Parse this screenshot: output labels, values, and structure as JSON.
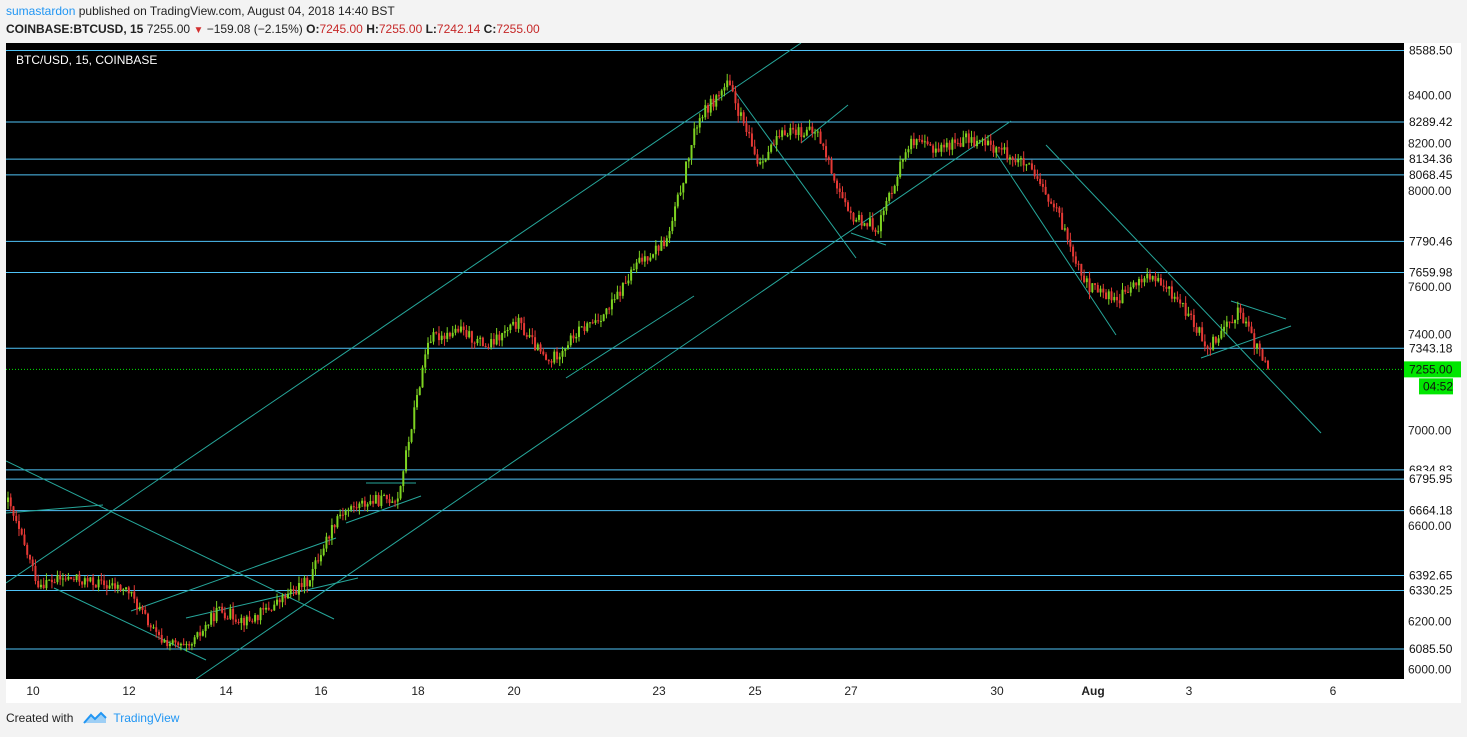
{
  "header": {
    "author": "sumastardon",
    "published_text": "published on TradingView.com, August 04, 2018 14:40 BST",
    "symbol": "COINBASE:BTCUSD, 15",
    "price": "7255.00",
    "change": "−159.08 (−2.15%)",
    "o_label": "O:",
    "o_value": "7245.00",
    "h_label": "H:",
    "h_value": "7255.00",
    "l_label": "L:",
    "l_value": "7242.14",
    "c_label": "C:",
    "c_value": "7255.00"
  },
  "footer": {
    "created_with": "Created with",
    "brand": "TradingView"
  },
  "colors": {
    "background": "#000000",
    "up_candle": "#7ed321",
    "down_candle": "#e53935",
    "trendline": "#26a69a",
    "level": "#4fc3f7",
    "price_badge": "#00e600"
  },
  "chart_data": {
    "type": "candlestick",
    "title": "BTC/USD, 15, COINBASE",
    "ylim": [
      5960,
      8620
    ],
    "y_ticks": [
      "8400.00",
      "8200.00",
      "8000.00",
      "7600.00",
      "7400.00",
      "7000.00",
      "6600.00",
      "6200.00",
      "6000.00"
    ],
    "x_tick_labels": [
      "10",
      "12",
      "14",
      "16",
      "18",
      "20",
      "23",
      "25",
      "27",
      "30",
      "Aug",
      "3",
      "6"
    ],
    "horizontal_levels": [
      8588.5,
      8289.42,
      8134.36,
      8068.45,
      7790.46,
      7659.98,
      7343.18,
      6834.83,
      6795.95,
      6664.18,
      6392.65,
      6330.25,
      6085.5
    ],
    "level_labels": [
      "8588.50",
      "8289.42",
      "8134.36",
      "8068.45",
      "7790.46",
      "7659.98",
      "7343.18",
      "6834.83",
      "6795.95",
      "6664.18",
      "6392.65",
      "6330.25",
      "6085.50"
    ],
    "last_price": "7255.00",
    "countdown": "04:52",
    "price_path": [
      {
        "x": "10",
        "y": 6700
      },
      {
        "x": "10.5",
        "y": 6360
      },
      {
        "x": "11",
        "y": 6380
      },
      {
        "x": "11.5",
        "y": 6360
      },
      {
        "x": "12",
        "y": 6330
      },
      {
        "x": "12.5",
        "y": 6130
      },
      {
        "x": "13",
        "y": 6080
      },
      {
        "x": "13.3",
        "y": 6250
      },
      {
        "x": "14",
        "y": 6200
      },
      {
        "x": "15",
        "y": 6280
      },
      {
        "x": "16",
        "y": 6370
      },
      {
        "x": "16.5",
        "y": 6650
      },
      {
        "x": "17",
        "y": 6700
      },
      {
        "x": "17.5",
        "y": 6720
      },
      {
        "x": "17.8",
        "y": 7380
      },
      {
        "x": "18.5",
        "y": 7420
      },
      {
        "x": "19.5",
        "y": 7350
      },
      {
        "x": "20.5",
        "y": 7450
      },
      {
        "x": "21",
        "y": 7280
      },
      {
        "x": "22",
        "y": 7410
      },
      {
        "x": "23",
        "y": 7500
      },
      {
        "x": "23.5",
        "y": 7700
      },
      {
        "x": "24",
        "y": 7800
      },
      {
        "x": "24.5",
        "y": 8300
      },
      {
        "x": "25",
        "y": 8450
      },
      {
        "x": "25.5",
        "y": 8120
      },
      {
        "x": "26",
        "y": 8260
      },
      {
        "x": "26.5",
        "y": 8240
      },
      {
        "x": "27",
        "y": 7900
      },
      {
        "x": "27.5",
        "y": 7850
      },
      {
        "x": "28",
        "y": 8200
      },
      {
        "x": "29",
        "y": 8180
      },
      {
        "x": "29.5",
        "y": 8220
      },
      {
        "x": "30",
        "y": 8180
      },
      {
        "x": "31",
        "y": 8100
      },
      {
        "x": "31.5",
        "y": 7900
      },
      {
        "x": "Aug 1",
        "y": 7600
      },
      {
        "x": "Aug 1.5",
        "y": 7550
      },
      {
        "x": "Aug 2",
        "y": 7650
      },
      {
        "x": "Aug 2.5",
        "y": 7550
      },
      {
        "x": "Aug 3",
        "y": 7350
      },
      {
        "x": "Aug 3.5",
        "y": 7500
      },
      {
        "x": "Aug 4",
        "y": 7255
      }
    ]
  }
}
